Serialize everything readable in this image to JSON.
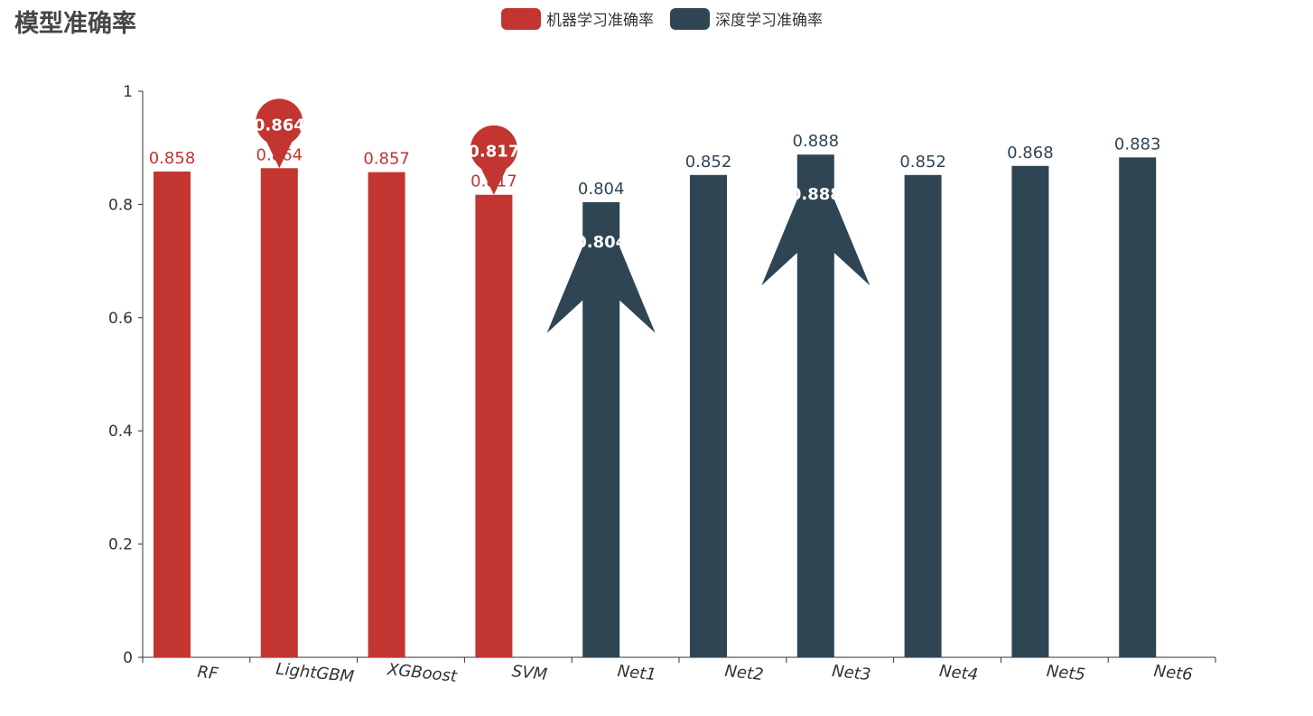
{
  "title": "模型准确率",
  "legend": [
    {
      "name": "机器学习准确率",
      "color": "#c23531"
    },
    {
      "name": "深度学习准确率",
      "color": "#2f4554"
    }
  ],
  "chart_data": {
    "type": "bar",
    "title": "模型准确率",
    "categories": [
      "RF",
      "LightGBM",
      "XGBoost",
      "SVM",
      "Net1",
      "Net2",
      "Net3",
      "Net4",
      "Net5",
      "Net6"
    ],
    "series": [
      {
        "name": "机器学习准确率",
        "color": "#c23531",
        "values": [
          0.858,
          0.864,
          0.857,
          0.817,
          null,
          null,
          null,
          null,
          null,
          null
        ],
        "labels": [
          "0.858",
          "0.864",
          "0.857",
          "0.817",
          null,
          null,
          null,
          null,
          null,
          null
        ]
      },
      {
        "name": "深度学习准确率",
        "color": "#2f4554",
        "values": [
          null,
          null,
          null,
          null,
          0.804,
          0.852,
          0.888,
          0.852,
          0.868,
          0.883
        ],
        "labels": [
          null,
          null,
          null,
          null,
          "0.804",
          "0.852",
          "0.888",
          "0.852",
          "0.868",
          "0.883"
        ]
      }
    ],
    "markers": [
      {
        "series": 0,
        "category": "LightGBM",
        "kind": "pin",
        "label": "0.864"
      },
      {
        "series": 0,
        "category": "SVM",
        "kind": "pin",
        "label": "0.817"
      },
      {
        "series": 1,
        "category": "Net1",
        "kind": "arrow",
        "label": "0.804"
      },
      {
        "series": 1,
        "category": "Net3",
        "kind": "arrow",
        "label": "0.888"
      }
    ],
    "yticks": [
      "0",
      "0.2",
      "0.4",
      "0.6",
      "0.8",
      "1"
    ],
    "ylim": [
      0,
      1
    ],
    "xlabel": "",
    "ylabel": "",
    "grid": false,
    "legend_position": "top-center"
  }
}
